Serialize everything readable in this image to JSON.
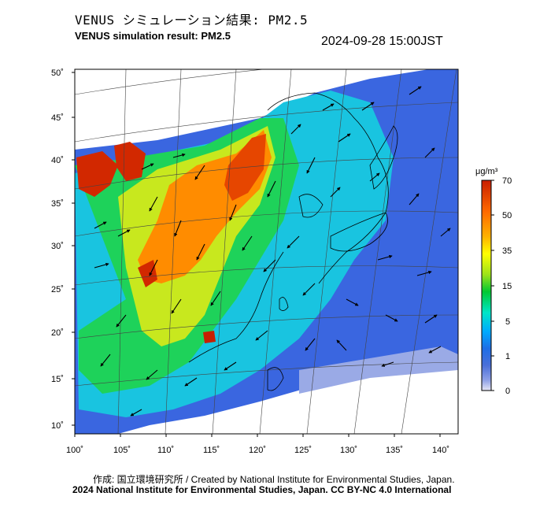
{
  "header": {
    "title_jp": "VENUS シミュレーション結果: PM2.5",
    "title_en": "VENUS simulation result: PM2.5",
    "timestamp": "2024-09-28 15:00JST"
  },
  "axes": {
    "lon_ticks": [
      "100˚",
      "105˚",
      "110˚",
      "115˚",
      "120˚",
      "125˚",
      "130˚",
      "135˚",
      "140˚"
    ],
    "lat_ticks": [
      "50˚",
      "45˚",
      "40˚",
      "35˚",
      "30˚",
      "25˚",
      "20˚",
      "15˚",
      "10˚"
    ]
  },
  "colorbar": {
    "unit": "μg/m³",
    "labels": [
      "70",
      "50",
      "35",
      "15",
      "5",
      "1",
      "0"
    ],
    "colors": [
      "#c81e00",
      "#ff6a00",
      "#ffb300",
      "#ffff00",
      "#9be21a",
      "#00c832",
      "#00e6c8",
      "#00aaff",
      "#1e6ee6",
      "#4a6fd9",
      "#8ea0e6",
      "#e6e6f5"
    ]
  },
  "footer": {
    "credit": "作成: 国立環境研究所 / Created by National Institute for Environmental Studies, Japan.",
    "license": "2024 National Institute for Environmental Studies, Japan. CC BY-NC 4.0 International"
  }
}
